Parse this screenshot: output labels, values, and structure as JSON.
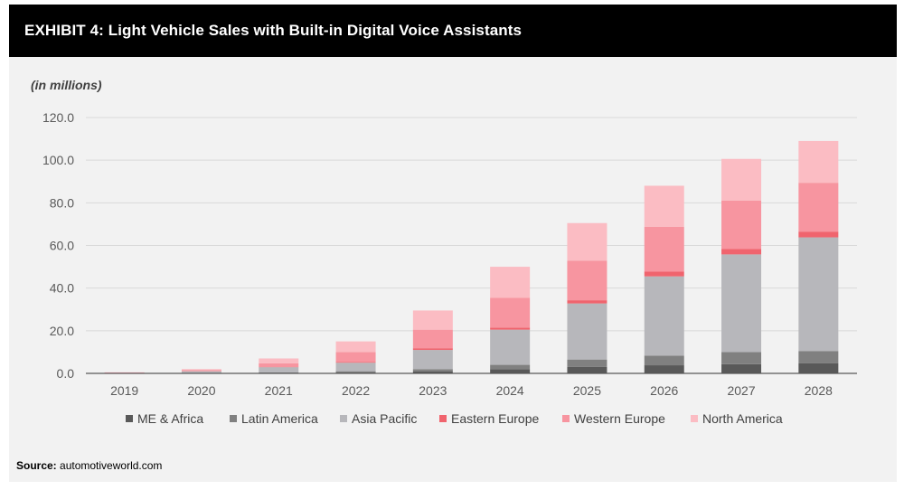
{
  "header": {
    "title": "EXHIBIT 4: Light Vehicle Sales with Built-in Digital Voice Assistants"
  },
  "source": {
    "label": "Source:",
    "text": "automotiveworld.com"
  },
  "chart_data": {
    "type": "bar",
    "stacked": true,
    "units_label": "(in millions)",
    "categories": [
      "2019",
      "2020",
      "2021",
      "2022",
      "2023",
      "2024",
      "2025",
      "2026",
      "2027",
      "2028"
    ],
    "y_ticks": [
      "0.0",
      "20.0",
      "40.0",
      "60.0",
      "80.0",
      "100.0",
      "120.0"
    ],
    "ylim": [
      0,
      120
    ],
    "grid": true,
    "legend_position": "bottom",
    "series": [
      {
        "name": "ME & Africa",
        "color": "#595959",
        "values": [
          0.0,
          0.1,
          0.2,
          0.4,
          1.0,
          2.0,
          3.0,
          3.8,
          4.3,
          4.8
        ]
      },
      {
        "name": "Latin America",
        "color": "#808080",
        "values": [
          0.0,
          0.1,
          0.3,
          0.6,
          1.0,
          2.0,
          3.5,
          4.5,
          5.7,
          5.7
        ]
      },
      {
        "name": "Asia Pacific",
        "color": "#b7b7bb",
        "values": [
          0.2,
          0.8,
          2.4,
          4.0,
          9.0,
          16.5,
          26.3,
          37.2,
          45.8,
          53.3
        ]
      },
      {
        "name": "Eastern Europe",
        "color": "#f0646e",
        "values": [
          0.0,
          0.1,
          0.2,
          0.4,
          0.8,
          1.0,
          1.5,
          2.2,
          2.5,
          2.7
        ]
      },
      {
        "name": "Western Europe",
        "color": "#f795a0",
        "values": [
          0.2,
          0.5,
          1.6,
          4.6,
          8.7,
          13.9,
          18.6,
          21.1,
          22.8,
          22.9
        ]
      },
      {
        "name": "North America",
        "color": "#fbbcc3",
        "values": [
          0.1,
          0.4,
          2.3,
          5.0,
          9.0,
          14.6,
          17.6,
          19.2,
          19.5,
          19.6
        ]
      }
    ]
  }
}
